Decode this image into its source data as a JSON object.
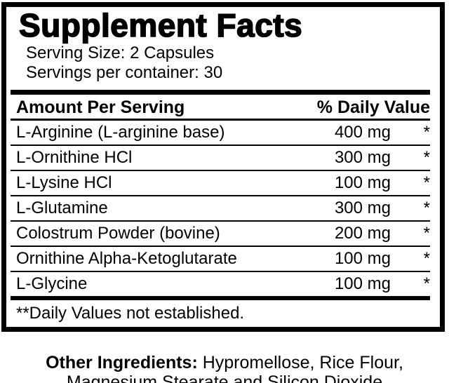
{
  "panel": {
    "title": "Supplement Facts",
    "serving_size": "Serving Size: 2 Capsules",
    "servings_per_container": "Servings per container: 30",
    "columns": {
      "amount_per_serving": "Amount Per Serving",
      "percent_daily_value": "% Daily Value"
    },
    "rows": [
      {
        "name": "L-Arginine (L-arginine base)",
        "amount": "400 mg",
        "daily_value": "*"
      },
      {
        "name": "L-Ornithine HCl",
        "amount": "300 mg",
        "daily_value": "*"
      },
      {
        "name": "L-Lysine HCl",
        "amount": "100 mg",
        "daily_value": "*"
      },
      {
        "name": "L-Glutamine",
        "amount": "300 mg",
        "daily_value": "*"
      },
      {
        "name": "Colostrum Powder (bovine)",
        "amount": "200 mg",
        "daily_value": "*"
      },
      {
        "name": "Ornithine Alpha-Ketoglutarate",
        "amount": "100 mg",
        "daily_value": "*"
      },
      {
        "name": "L-Glycine",
        "amount": "100 mg",
        "daily_value": "*"
      }
    ],
    "footnote": "**Daily Values not established."
  },
  "other_ingredients": {
    "label": "Other Ingredients:",
    "line1_rest": " Hypromellose, Rice Flour,",
    "line2": "Magnesium Stearate and Silicon Dioxide"
  },
  "colors": {
    "ink": "#000000",
    "background": "#ffffff"
  }
}
